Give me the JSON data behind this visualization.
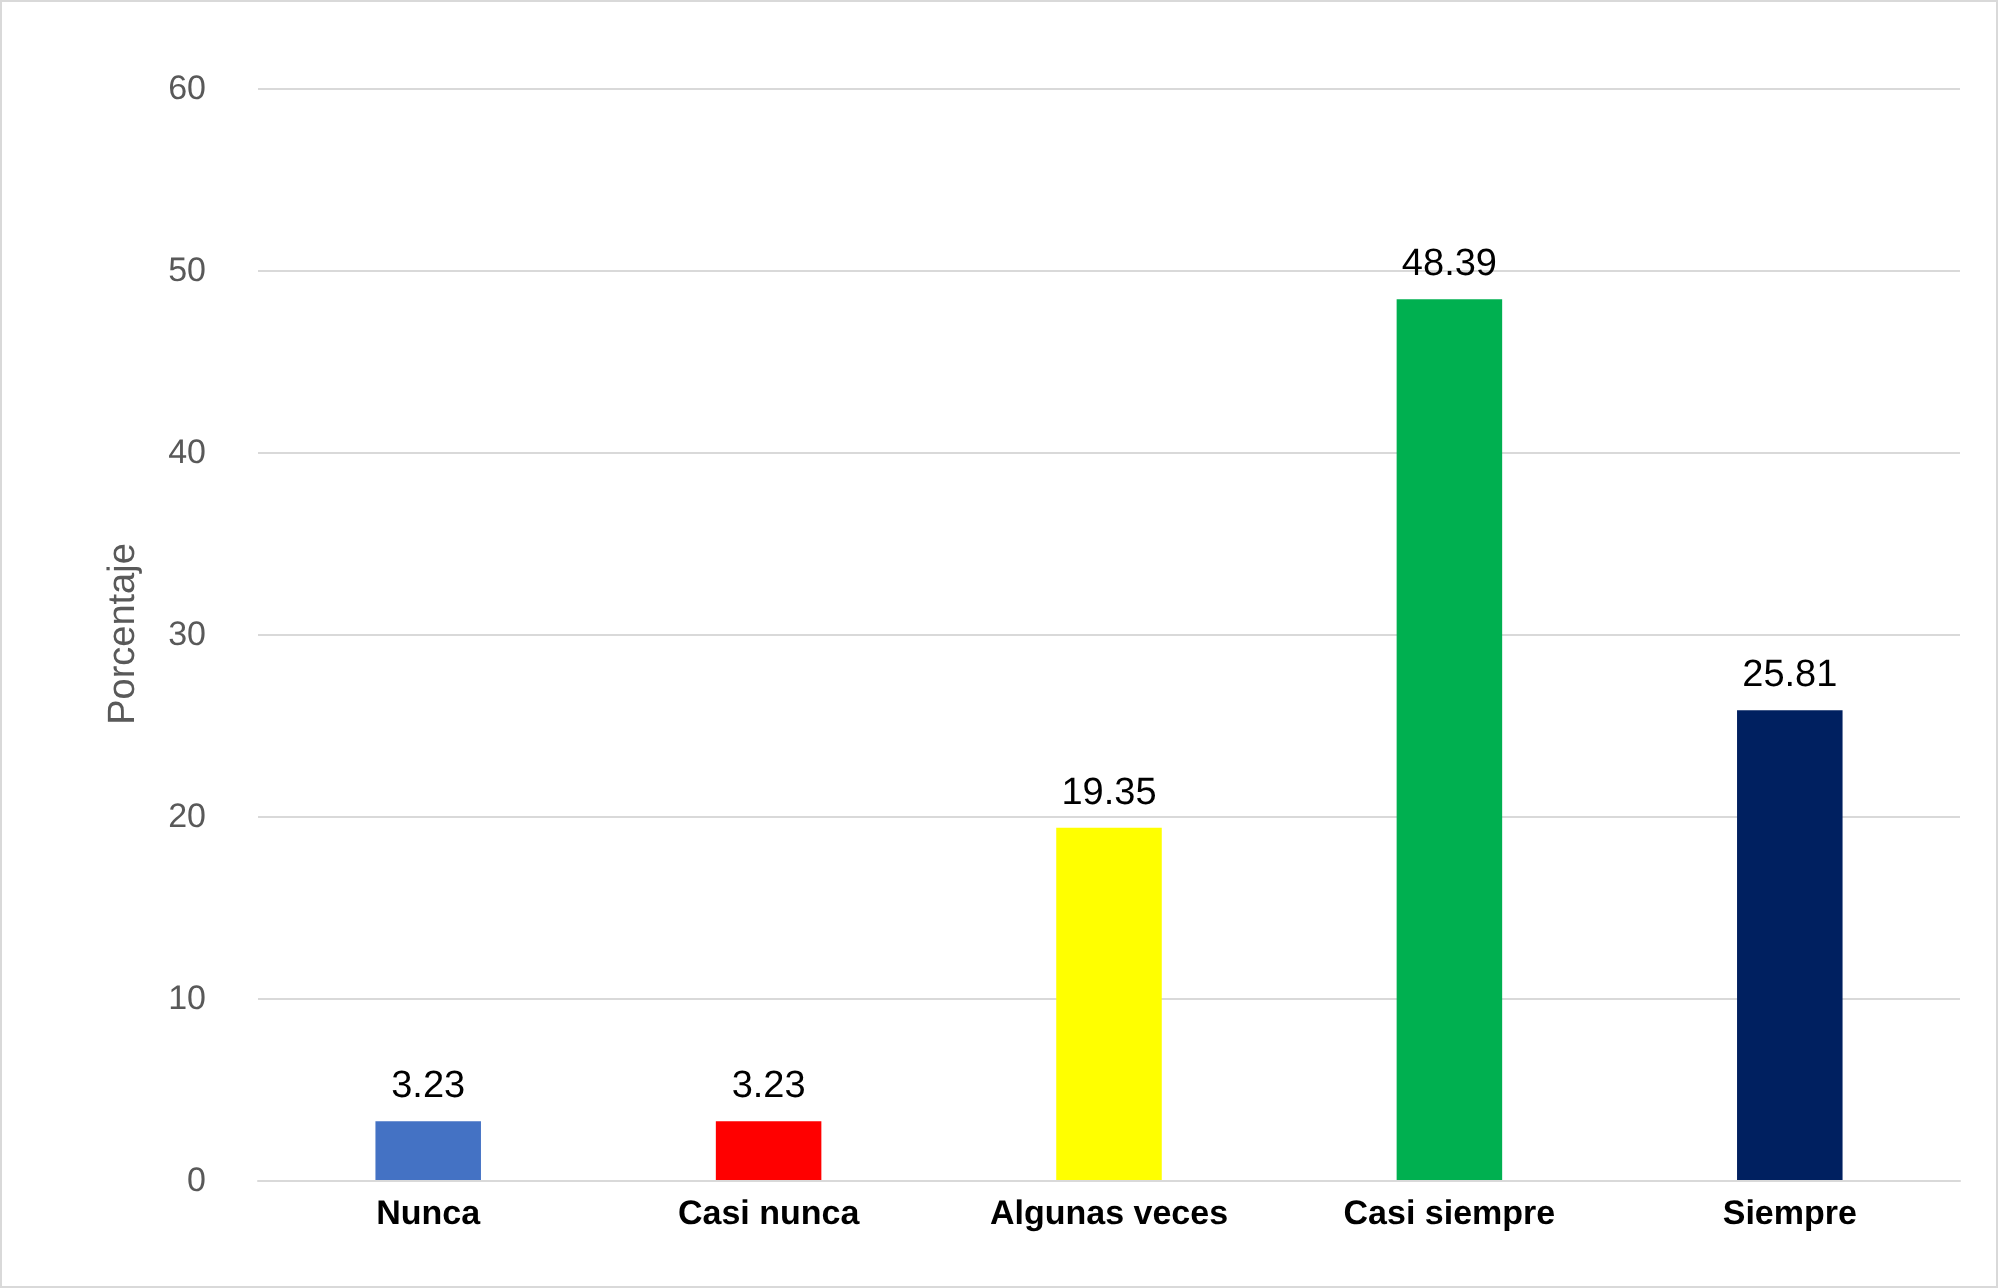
{
  "chart_data": {
    "type": "bar",
    "ylabel": "Porcentaje",
    "categories": [
      "Nunca",
      "Casi nunca",
      "Algunas veces",
      "Casi siempre",
      "Siempre"
    ],
    "values": [
      3.23,
      3.23,
      19.35,
      48.39,
      25.81
    ],
    "colors": [
      "#4472c4",
      "#ff0000",
      "#ffff00",
      "#00b050",
      "#002060"
    ],
    "ylim": [
      0,
      60
    ],
    "yticks": [
      0,
      10,
      20,
      30,
      40,
      50,
      60
    ],
    "grid": "y",
    "data_labels": true
  }
}
